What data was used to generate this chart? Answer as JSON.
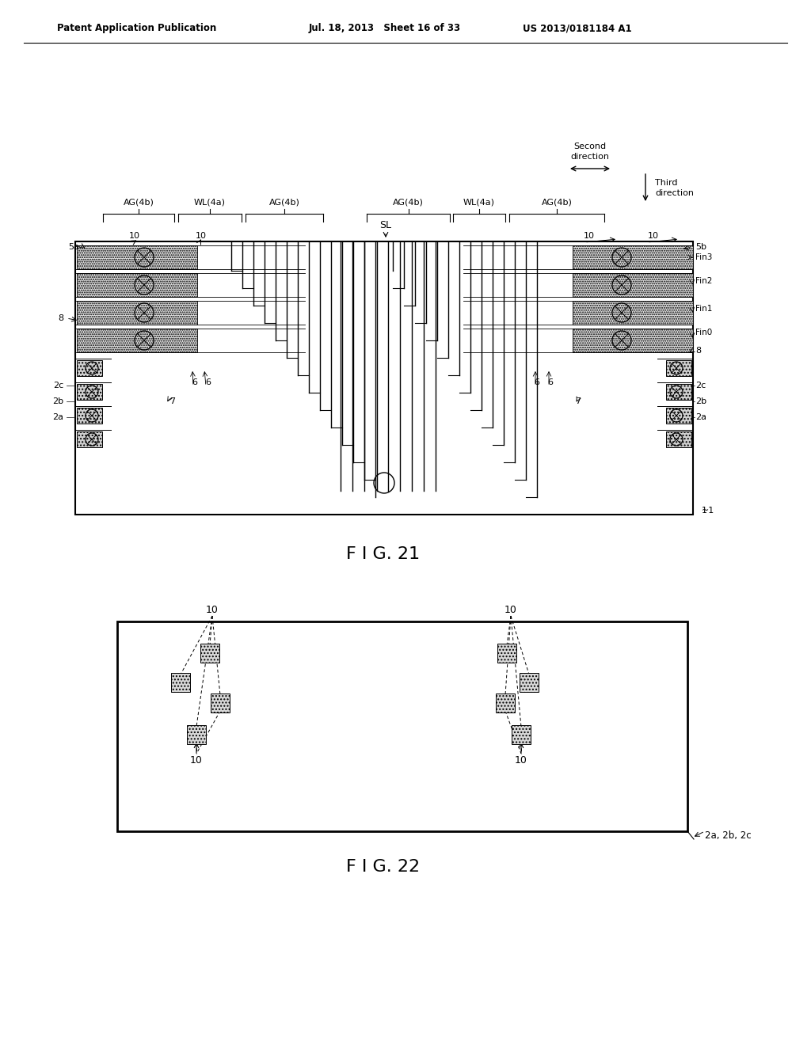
{
  "header_left": "Patent Application Publication",
  "header_mid": "Jul. 18, 2013   Sheet 16 of 33",
  "header_right": "US 2013/0181184 A1",
  "fig21_label": "F I G. 21",
  "fig22_label": "F I G. 22",
  "bg_color": "#ffffff"
}
